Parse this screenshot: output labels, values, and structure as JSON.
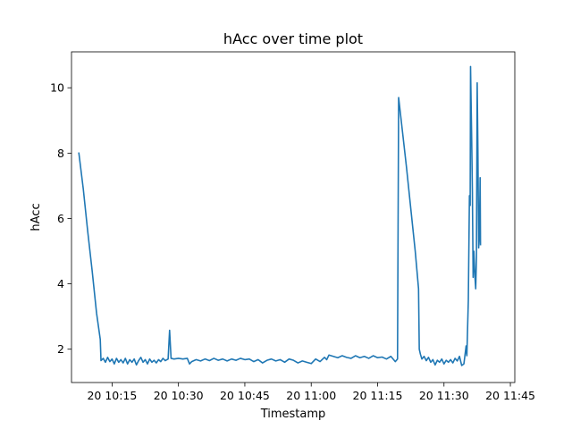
{
  "chart_data": {
    "type": "line",
    "title": "hAcc over time plot",
    "xlabel": "Timestamp",
    "ylabel": "hAcc",
    "x_range": [
      "10:05:50",
      "11:46:00"
    ],
    "ylim": [
      0.98,
      11.1
    ],
    "x_ticks": [
      {
        "label": "20 10:15",
        "time": "10:15"
      },
      {
        "label": "20 10:30",
        "time": "10:30"
      },
      {
        "label": "20 10:45",
        "time": "10:45"
      },
      {
        "label": "20 11:00",
        "time": "11:00"
      },
      {
        "label": "20 11:15",
        "time": "11:15"
      },
      {
        "label": "20 11:30",
        "time": "11:30"
      },
      {
        "label": "20 11:45",
        "time": "11:45"
      }
    ],
    "y_ticks": [
      2,
      4,
      6,
      8,
      10
    ],
    "grid": false,
    "legend": "none",
    "series": [
      {
        "color": "#1f77b4",
        "points": [
          [
            "10:07:30",
            8.0
          ],
          [
            "10:08:30",
            6.9
          ],
          [
            "10:09:30",
            5.6
          ],
          [
            "10:10:30",
            4.4
          ],
          [
            "10:11:30",
            3.1
          ],
          [
            "10:12:20",
            2.3
          ],
          [
            "10:12:30",
            1.65
          ],
          [
            "10:13:00",
            1.72
          ],
          [
            "10:13:30",
            1.6
          ],
          [
            "10:14:00",
            1.75
          ],
          [
            "10:14:30",
            1.62
          ],
          [
            "10:15:00",
            1.7
          ],
          [
            "10:15:30",
            1.55
          ],
          [
            "10:16:00",
            1.72
          ],
          [
            "10:16:30",
            1.6
          ],
          [
            "10:17:00",
            1.68
          ],
          [
            "10:17:30",
            1.58
          ],
          [
            "10:18:00",
            1.72
          ],
          [
            "10:18:30",
            1.55
          ],
          [
            "10:19:00",
            1.68
          ],
          [
            "10:19:30",
            1.6
          ],
          [
            "10:20:00",
            1.7
          ],
          [
            "10:20:30",
            1.52
          ],
          [
            "10:21:00",
            1.65
          ],
          [
            "10:21:30",
            1.75
          ],
          [
            "10:22:00",
            1.6
          ],
          [
            "10:22:30",
            1.68
          ],
          [
            "10:23:00",
            1.55
          ],
          [
            "10:23:30",
            1.7
          ],
          [
            "10:24:00",
            1.6
          ],
          [
            "10:24:30",
            1.66
          ],
          [
            "10:25:00",
            1.58
          ],
          [
            "10:25:30",
            1.68
          ],
          [
            "10:26:00",
            1.62
          ],
          [
            "10:26:30",
            1.72
          ],
          [
            "10:27:00",
            1.65
          ],
          [
            "10:27:40",
            1.7
          ],
          [
            "10:28:00",
            2.58
          ],
          [
            "10:28:20",
            1.72
          ],
          [
            "10:29:00",
            1.7
          ],
          [
            "10:30:00",
            1.72
          ],
          [
            "10:31:00",
            1.7
          ],
          [
            "10:32:00",
            1.72
          ],
          [
            "10:32:30",
            1.55
          ],
          [
            "10:33:00",
            1.62
          ],
          [
            "10:34:00",
            1.68
          ],
          [
            "10:35:00",
            1.64
          ],
          [
            "10:36:00",
            1.7
          ],
          [
            "10:37:00",
            1.65
          ],
          [
            "10:38:00",
            1.72
          ],
          [
            "10:39:00",
            1.66
          ],
          [
            "10:40:00",
            1.7
          ],
          [
            "10:41:00",
            1.64
          ],
          [
            "10:42:00",
            1.7
          ],
          [
            "10:43:00",
            1.66
          ],
          [
            "10:44:00",
            1.72
          ],
          [
            "10:45:00",
            1.68
          ],
          [
            "10:46:00",
            1.7
          ],
          [
            "10:47:00",
            1.62
          ],
          [
            "10:48:00",
            1.68
          ],
          [
            "10:49:00",
            1.58
          ],
          [
            "10:50:00",
            1.66
          ],
          [
            "10:51:00",
            1.7
          ],
          [
            "10:52:00",
            1.64
          ],
          [
            "10:53:00",
            1.68
          ],
          [
            "10:54:00",
            1.6
          ],
          [
            "10:55:00",
            1.7
          ],
          [
            "10:56:00",
            1.66
          ],
          [
            "10:57:00",
            1.58
          ],
          [
            "10:58:00",
            1.64
          ],
          [
            "10:59:00",
            1.6
          ],
          [
            "11:00:00",
            1.56
          ],
          [
            "11:01:00",
            1.7
          ],
          [
            "11:02:00",
            1.62
          ],
          [
            "11:03:00",
            1.75
          ],
          [
            "11:03:30",
            1.68
          ],
          [
            "11:04:00",
            1.82
          ],
          [
            "11:05:00",
            1.78
          ],
          [
            "11:06:00",
            1.74
          ],
          [
            "11:07:00",
            1.8
          ],
          [
            "11:08:00",
            1.75
          ],
          [
            "11:09:00",
            1.72
          ],
          [
            "11:10:00",
            1.8
          ],
          [
            "11:11:00",
            1.74
          ],
          [
            "11:12:00",
            1.78
          ],
          [
            "11:13:00",
            1.72
          ],
          [
            "11:14:00",
            1.8
          ],
          [
            "11:15:00",
            1.74
          ],
          [
            "11:16:00",
            1.76
          ],
          [
            "11:17:00",
            1.7
          ],
          [
            "11:18:00",
            1.78
          ],
          [
            "11:19:00",
            1.62
          ],
          [
            "11:19:30",
            1.7
          ],
          [
            "11:19:45",
            9.7
          ],
          [
            "11:20:30",
            8.8
          ],
          [
            "11:21:30",
            7.6
          ],
          [
            "11:22:30",
            6.3
          ],
          [
            "11:23:30",
            5.0
          ],
          [
            "11:24:15",
            3.85
          ],
          [
            "11:24:25",
            2.0
          ],
          [
            "11:24:40",
            1.85
          ],
          [
            "11:25:00",
            1.7
          ],
          [
            "11:25:30",
            1.78
          ],
          [
            "11:26:00",
            1.65
          ],
          [
            "11:26:30",
            1.75
          ],
          [
            "11:27:00",
            1.6
          ],
          [
            "11:27:30",
            1.68
          ],
          [
            "11:28:00",
            1.52
          ],
          [
            "11:28:30",
            1.66
          ],
          [
            "11:29:00",
            1.6
          ],
          [
            "11:29:30",
            1.7
          ],
          [
            "11:30:00",
            1.55
          ],
          [
            "11:30:30",
            1.66
          ],
          [
            "11:31:00",
            1.6
          ],
          [
            "11:31:30",
            1.68
          ],
          [
            "11:32:00",
            1.58
          ],
          [
            "11:32:30",
            1.72
          ],
          [
            "11:33:00",
            1.64
          ],
          [
            "11:33:30",
            1.78
          ],
          [
            "11:34:00",
            1.5
          ],
          [
            "11:34:30",
            1.55
          ],
          [
            "11:35:00",
            2.1
          ],
          [
            "11:35:10",
            1.8
          ],
          [
            "11:35:30",
            3.5
          ],
          [
            "11:35:45",
            6.7
          ],
          [
            "11:35:55",
            6.4
          ],
          [
            "11:36:00",
            10.65
          ],
          [
            "11:36:15",
            8.5
          ],
          [
            "11:36:25",
            6.8
          ],
          [
            "11:36:35",
            4.2
          ],
          [
            "11:36:45",
            5.0
          ],
          [
            "11:37:00",
            4.2
          ],
          [
            "11:37:10",
            3.85
          ],
          [
            "11:37:20",
            4.8
          ],
          [
            "11:37:30",
            10.15
          ],
          [
            "11:37:40",
            8.0
          ],
          [
            "11:37:50",
            5.1
          ],
          [
            "11:38:00",
            5.5
          ],
          [
            "11:38:10",
            7.25
          ],
          [
            "11:38:15",
            5.2
          ]
        ]
      }
    ]
  }
}
